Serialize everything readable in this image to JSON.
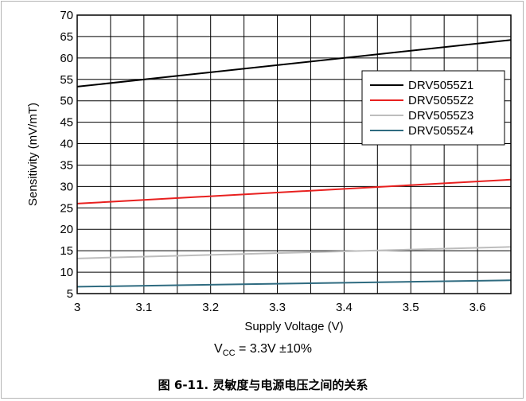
{
  "chart_data": {
    "type": "line",
    "xlabel": "Supply Voltage (V)",
    "ylabel": "Sensitivity (mV/mT)",
    "xlim": [
      3,
      3.65
    ],
    "ylim": [
      5,
      70
    ],
    "xticks": [
      3,
      3.1,
      3.2,
      3.3,
      3.4,
      3.5,
      3.6
    ],
    "xtick_labels": [
      "3",
      "3.1",
      "3.2",
      "3.3",
      "3.4",
      "3.5",
      "3.6"
    ],
    "yticks": [
      5,
      10,
      15,
      20,
      25,
      30,
      35,
      40,
      45,
      50,
      55,
      60,
      65,
      70
    ],
    "ytick_labels": [
      "5",
      "10",
      "15",
      "20",
      "25",
      "30",
      "35",
      "40",
      "45",
      "50",
      "55",
      "60",
      "65",
      "70"
    ],
    "grid": true,
    "legend_position": "top-right",
    "series": [
      {
        "name": "DRV5055Z1",
        "color": "#000000",
        "x": [
          3,
          3.65
        ],
        "y": [
          53.3,
          64.2
        ]
      },
      {
        "name": "DRV5055Z2",
        "color": "#e8201f",
        "x": [
          3,
          3.65
        ],
        "y": [
          26.0,
          31.6
        ]
      },
      {
        "name": "DRV5055Z3",
        "color": "#bdbdbd",
        "x": [
          3,
          3.65
        ],
        "y": [
          13.2,
          15.9
        ]
      },
      {
        "name": "DRV5055Z4",
        "color": "#2f6b80",
        "x": [
          3,
          3.65
        ],
        "y": [
          6.6,
          8.1
        ]
      }
    ]
  },
  "condition": {
    "prefix": "V",
    "subscript": "CC",
    "text": " = 3.3V ±10%"
  },
  "caption": "图 6-11. 灵敏度与电源电压之间的关系"
}
